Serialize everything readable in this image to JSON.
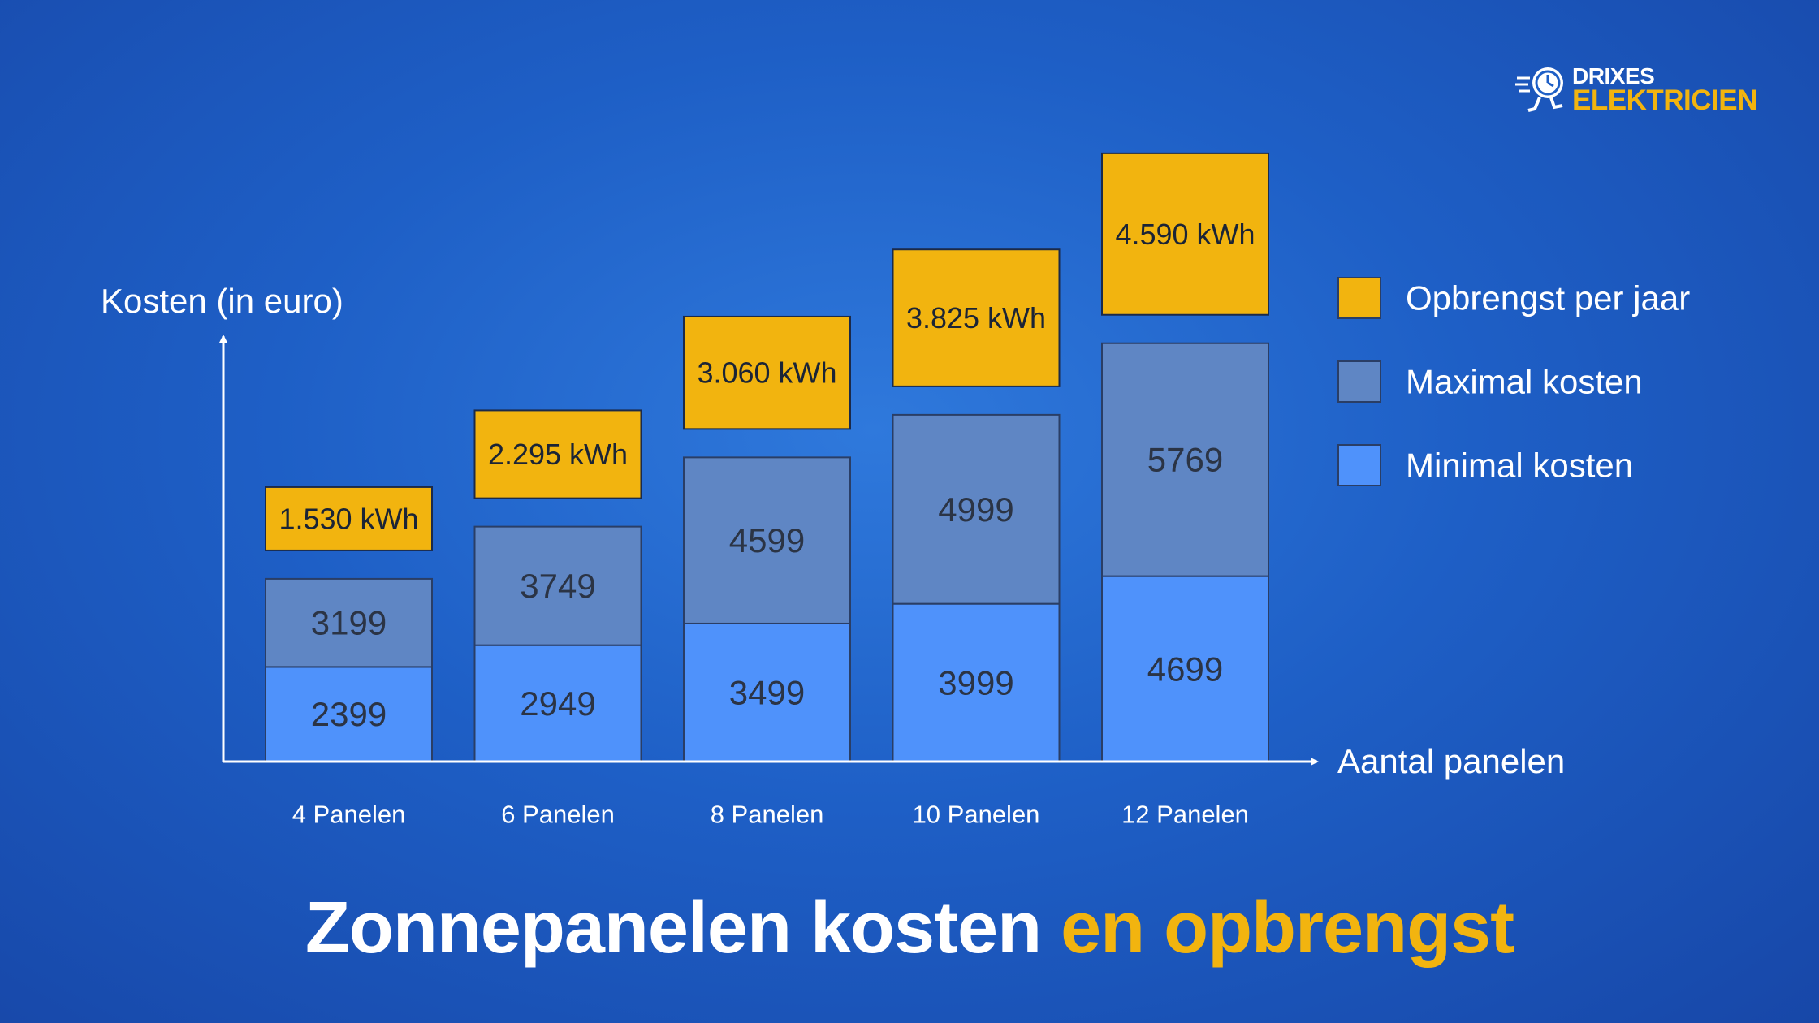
{
  "brand": {
    "line1": "DRIXES",
    "line2": "ELEKTRICIEN",
    "icon": "running-clock-icon"
  },
  "title": {
    "part1": "Zonnepanelen kosten",
    "part2": "en opbrengst"
  },
  "colors": {
    "background": "#1e5fc6",
    "opbrengst": "#f2b40f",
    "maximal": "#5f86c4",
    "minimal": "#4f92fb",
    "accent": "#f2b40f"
  },
  "chart_data": {
    "type": "bar",
    "stacked": true,
    "ylabel": "Kosten (in euro)",
    "xlabel": "Aantal panelen",
    "categories": [
      "4 Panelen",
      "6 Panelen",
      "8 Panelen",
      "10 Panelen",
      "12 Panelen"
    ],
    "series": [
      {
        "name": "Minimal kosten",
        "values": [
          2399,
          2949,
          3499,
          3999,
          4699
        ]
      },
      {
        "name": "Maximal kosten",
        "values": [
          3199,
          3749,
          4599,
          4999,
          5769
        ]
      }
    ],
    "yield": {
      "name": "Opbrengst per jaar",
      "values": [
        1530,
        2295,
        3060,
        3825,
        4590
      ],
      "labels": [
        "1.530 kWh",
        "2.295 kWh",
        "3.060 kWh",
        "3.825 kWh",
        "4.590 kWh"
      ],
      "unit": "kWh"
    },
    "legend": {
      "position": "right",
      "items": [
        "Opbrengst per jaar",
        "Maximal kosten",
        "Minimal kosten"
      ]
    },
    "grid": false
  }
}
